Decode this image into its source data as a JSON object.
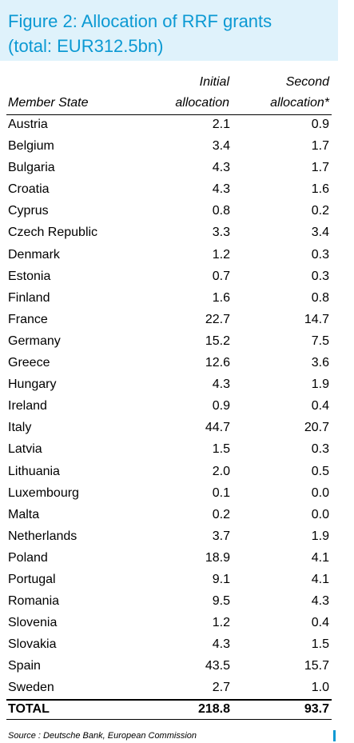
{
  "title_line1": "Figure 2: Allocation of RRF grants",
  "title_line2": "(total: EUR312.5bn)",
  "colors": {
    "title": "#0b99d3",
    "title_bg": "#dff2fb",
    "marker": "#0b99d3"
  },
  "chart_data": {
    "type": "table",
    "columns": [
      {
        "line1": "",
        "line2": "Member State"
      },
      {
        "line1": "Initial",
        "line2": "allocation"
      },
      {
        "line1": "Second",
        "line2": "allocation*"
      }
    ],
    "rows": [
      {
        "name": "Austria",
        "initial": "2.1",
        "second": "0.9"
      },
      {
        "name": "Belgium",
        "initial": "3.4",
        "second": "1.7"
      },
      {
        "name": "Bulgaria",
        "initial": "4.3",
        "second": "1.7"
      },
      {
        "name": "Croatia",
        "initial": "4.3",
        "second": "1.6"
      },
      {
        "name": "Cyprus",
        "initial": "0.8",
        "second": "0.2"
      },
      {
        "name": "Czech Republic",
        "initial": "3.3",
        "second": "3.4"
      },
      {
        "name": "Denmark",
        "initial": "1.2",
        "second": "0.3"
      },
      {
        "name": "Estonia",
        "initial": "0.7",
        "second": "0.3"
      },
      {
        "name": "Finland",
        "initial": "1.6",
        "second": "0.8"
      },
      {
        "name": "France",
        "initial": "22.7",
        "second": "14.7"
      },
      {
        "name": "Germany",
        "initial": "15.2",
        "second": "7.5"
      },
      {
        "name": "Greece",
        "initial": "12.6",
        "second": "3.6"
      },
      {
        "name": "Hungary",
        "initial": "4.3",
        "second": "1.9"
      },
      {
        "name": "Ireland",
        "initial": "0.9",
        "second": "0.4"
      },
      {
        "name": "Italy",
        "initial": "44.7",
        "second": "20.7"
      },
      {
        "name": "Latvia",
        "initial": "1.5",
        "second": "0.3"
      },
      {
        "name": "Lithuania",
        "initial": "2.0",
        "second": "0.5"
      },
      {
        "name": "Luxembourg",
        "initial": "0.1",
        "second": "0.0"
      },
      {
        "name": "Malta",
        "initial": "0.2",
        "second": "0.0"
      },
      {
        "name": "Netherlands",
        "initial": "3.7",
        "second": "1.9"
      },
      {
        "name": "Poland",
        "initial": "18.9",
        "second": "4.1"
      },
      {
        "name": "Portugal",
        "initial": "9.1",
        "second": "4.1"
      },
      {
        "name": "Romania",
        "initial": "9.5",
        "second": "4.3"
      },
      {
        "name": "Slovenia",
        "initial": "1.2",
        "second": "0.4"
      },
      {
        "name": "Slovakia",
        "initial": "4.3",
        "second": "1.5"
      },
      {
        "name": "Spain",
        "initial": "43.5",
        "second": "15.7"
      },
      {
        "name": "Sweden",
        "initial": "2.7",
        "second": "1.0"
      }
    ],
    "total": {
      "name": "TOTAL",
      "initial": "218.8",
      "second": "93.7"
    }
  },
  "source": "Source : Deutsche Bank, European Commission"
}
